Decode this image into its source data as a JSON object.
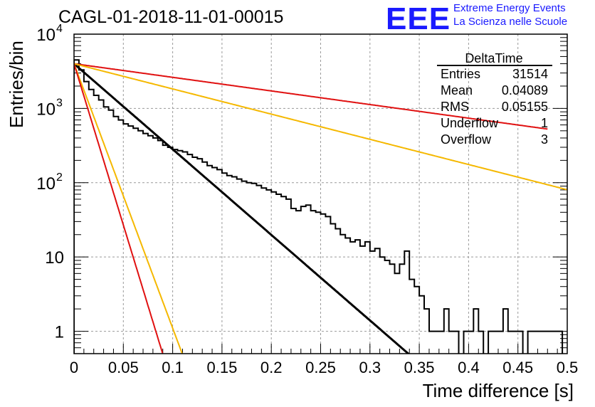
{
  "header": {
    "title": "CAGL-01-2018-11-01-00015",
    "logo_text": "EEE",
    "logo_line1": "Extreme Energy Events",
    "logo_line2": "La Scienza nelle Scuole"
  },
  "stats_box": {
    "title": "DeltaTime",
    "rows": [
      {
        "label": "Entries",
        "value": "31514"
      },
      {
        "label": "Mean",
        "value": "0.04089"
      },
      {
        "label": "RMS",
        "value": "0.05155"
      },
      {
        "label": "Underflow",
        "value": "1"
      },
      {
        "label": "Overflow",
        "value": "3"
      }
    ]
  },
  "chart_data": {
    "type": "line",
    "xlabel": "Time difference [s]",
    "ylabel": "Entries/bin",
    "xlim": [
      0,
      0.5
    ],
    "ylim": [
      0.5,
      10000
    ],
    "yscale": "log",
    "grid": true,
    "x_ticks": [
      "0",
      "0.05",
      "0.1",
      "0.15",
      "0.2",
      "0.25",
      "0.3",
      "0.35",
      "0.4",
      "0.45",
      "0.5"
    ],
    "y_ticks": [
      {
        "value": 1,
        "label": "1"
      },
      {
        "value": 10,
        "label": "10"
      },
      {
        "value": 100,
        "label": "10^2"
      },
      {
        "value": 1000,
        "label": "10^3"
      },
      {
        "value": 10000,
        "label": "10^4"
      }
    ],
    "histogram": {
      "bin_width": 0.005,
      "color": "#000000",
      "values": [
        4500,
        3300,
        2300,
        1800,
        1500,
        1300,
        1050,
        950,
        780,
        700,
        620,
        580,
        540,
        500,
        460,
        430,
        400,
        370,
        320,
        300,
        280,
        270,
        260,
        240,
        220,
        210,
        190,
        170,
        160,
        150,
        135,
        125,
        120,
        112,
        105,
        100,
        98,
        92,
        85,
        80,
        75,
        70,
        65,
        60,
        45,
        42,
        48,
        50,
        42,
        40,
        38,
        35,
        28,
        24,
        20,
        18,
        16,
        17,
        14,
        16,
        12,
        13,
        10,
        9,
        8,
        6,
        8,
        12,
        5,
        4,
        3,
        2,
        1,
        1,
        1,
        2,
        1,
        1,
        0,
        1,
        1,
        2,
        1,
        0,
        1,
        1,
        1,
        2,
        1,
        1,
        1,
        0,
        1,
        1,
        1,
        1,
        1,
        1,
        1,
        0
      ]
    },
    "series": [
      {
        "color": "#000000",
        "kind": "exponential",
        "A": 4000,
        "tau": 0.0377,
        "x_end": 0.5
      },
      {
        "color": "#e01010",
        "kind": "exponential",
        "A": 4000,
        "tau": 0.237,
        "x_end": 0.48
      },
      {
        "color": "#f5b800",
        "kind": "exponential",
        "A": 4000,
        "tau": 0.128,
        "x_end": 0.5
      },
      {
        "color": "#f5b800",
        "kind": "exponential",
        "A": 4000,
        "tau": 0.0122,
        "x_end": 0.5
      },
      {
        "color": "#e01010",
        "kind": "exponential",
        "A": 4000,
        "tau": 0.01,
        "x_end": 0.5
      }
    ]
  }
}
